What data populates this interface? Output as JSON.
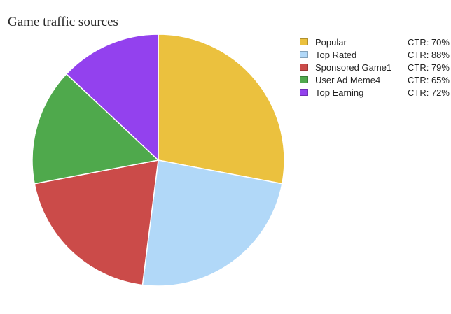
{
  "chart_data": {
    "type": "pie",
    "title": "Game traffic sources",
    "legend_position": "top-right",
    "slices": [
      {
        "label": "Popular",
        "value": 28,
        "ctr": "CTR: 70%",
        "color": "#EBC13E"
      },
      {
        "label": "Top Rated",
        "value": 24,
        "ctr": "CTR: 88%",
        "color": "#B1D8F8"
      },
      {
        "label": "Sponsored Game1",
        "value": 20,
        "ctr": "CTR: 79%",
        "color": "#CB4B49"
      },
      {
        "label": "User Ad Meme4",
        "value": 15,
        "ctr": "CTR: 65%",
        "color": "#4FA94C"
      },
      {
        "label": "Top Earning",
        "value": 13,
        "ctr": "CTR: 72%",
        "color": "#9341EE"
      }
    ]
  }
}
